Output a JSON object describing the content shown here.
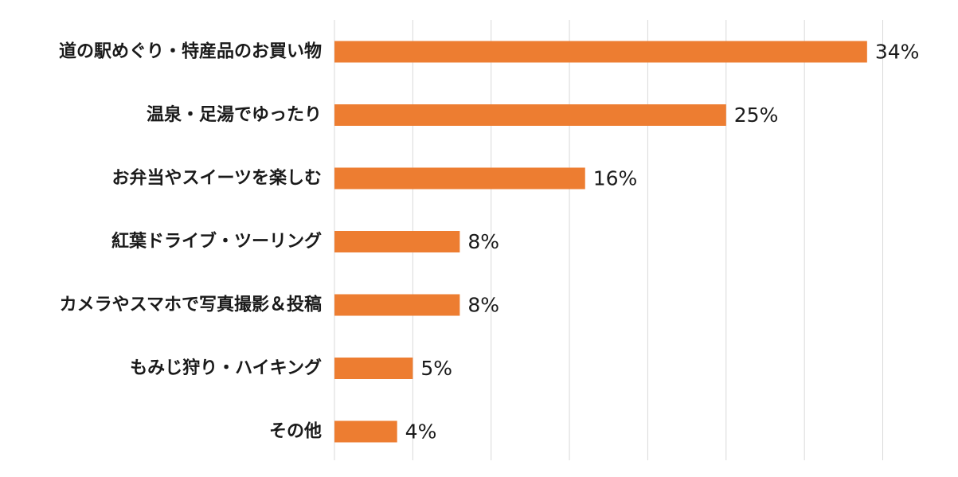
{
  "chart_data": {
    "type": "bar",
    "orientation": "horizontal",
    "categories": [
      "道の駅めぐり・特産品のお買い物",
      "温泉・足湯でゆったり",
      "お弁当やスイーツを楽しむ",
      "紅葉ドライブ・ツーリング",
      "カメラやスマホで写真撮影＆投稿",
      "もみじ狩り・ハイキング",
      "その他"
    ],
    "values": [
      34,
      25,
      16,
      8,
      8,
      5,
      4
    ],
    "value_labels": [
      "34%",
      "25%",
      "16%",
      "8%",
      "8%",
      "5%",
      "4%"
    ],
    "unit": "%",
    "xlim": [
      0,
      35
    ],
    "grid": true,
    "bar_color": "#ED7D31"
  }
}
